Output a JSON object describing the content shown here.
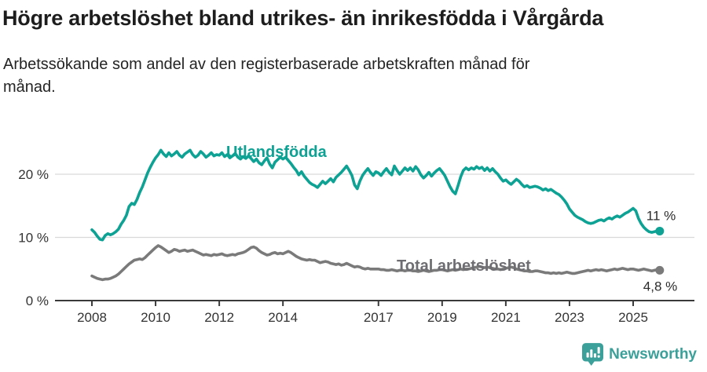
{
  "header": {
    "title": "Högre arbetslöshet bland utrikes- än inrikesfödda i Vårgårda",
    "subtitle_line1": "Arbetssökande som andel av den registerbaserade arbetskraften månad för",
    "subtitle_line2": "månad."
  },
  "footer": {
    "brand": "Newsworthy",
    "brand_color": "#3BA099",
    "logo_icon": "newsworthy-bubble-barchart-icon"
  },
  "chart_data": {
    "type": "line",
    "x_start_year": 2008,
    "x_interval": "monthly",
    "xticks": [
      2008,
      2010,
      2012,
      2014,
      2017,
      2019,
      2021,
      2023,
      2025
    ],
    "xtick_labels": [
      "2008",
      "2010",
      "2012",
      "2014",
      "2017",
      "2019",
      "2021",
      "2023",
      "2025"
    ],
    "yticks": [
      0,
      10,
      20
    ],
    "ytick_labels": [
      "0 %",
      "10 %",
      "20 %"
    ],
    "ylim": [
      0,
      27
    ],
    "grid": "horizontal-only",
    "unit": "%",
    "colors": {
      "foreign_born": "#0DA294",
      "total": "#7A7A7A",
      "grid": "#d9d9d9",
      "axis": "#3a3a3a"
    },
    "series": [
      {
        "name": "Utlandsfödda",
        "color": "#0DA294",
        "label_color": "#0DA294",
        "end_label": "11 %",
        "values": [
          11.2,
          10.8,
          10.2,
          9.7,
          9.6,
          10.3,
          10.6,
          10.4,
          10.6,
          10.9,
          11.3,
          12.1,
          12.7,
          13.5,
          14.9,
          15.4,
          15.2,
          16.0,
          17.1,
          18.0,
          19.1,
          20.2,
          21.1,
          21.9,
          22.6,
          23.1,
          23.8,
          23.2,
          22.8,
          23.4,
          22.9,
          23.2,
          23.6,
          23.0,
          22.7,
          23.2,
          23.5,
          23.8,
          23.1,
          22.7,
          23.0,
          23.6,
          23.2,
          22.7,
          23.0,
          23.4,
          22.9,
          23.1,
          23.0,
          23.4,
          22.8,
          23.1,
          22.6,
          22.9,
          23.3,
          22.7,
          22.4,
          22.8,
          22.5,
          22.9,
          22.5,
          22.0,
          22.4,
          21.8,
          21.5,
          22.1,
          22.6,
          21.6,
          21.0,
          21.9,
          22.3,
          22.7,
          22.4,
          22.7,
          22.2,
          21.7,
          21.1,
          20.6,
          19.9,
          20.4,
          19.7,
          19.2,
          18.7,
          18.4,
          18.2,
          17.9,
          18.4,
          18.9,
          18.5,
          18.9,
          19.3,
          18.8,
          19.5,
          19.9,
          20.3,
          20.8,
          21.3,
          20.6,
          19.8,
          18.3,
          17.7,
          18.9,
          19.8,
          20.4,
          20.9,
          20.3,
          19.8,
          20.4,
          20.2,
          19.8,
          20.4,
          20.9,
          20.3,
          19.9,
          21.3,
          20.6,
          20.0,
          20.5,
          21.0,
          20.6,
          21.0,
          20.5,
          21.2,
          20.7,
          19.9,
          19.4,
          19.8,
          20.3,
          19.7,
          20.2,
          20.6,
          20.9,
          20.4,
          19.8,
          18.9,
          18.0,
          17.3,
          16.9,
          18.2,
          19.6,
          20.6,
          21.0,
          20.7,
          21.0,
          20.8,
          21.2,
          20.9,
          21.1,
          20.6,
          21.0,
          20.5,
          20.9,
          20.4,
          20.0,
          19.4,
          18.9,
          19.1,
          18.7,
          18.4,
          18.8,
          19.2,
          18.9,
          18.4,
          18.0,
          18.2,
          17.9,
          18.0,
          18.1,
          18.0,
          17.8,
          17.5,
          17.7,
          17.4,
          17.6,
          17.3,
          17.0,
          16.8,
          16.4,
          15.9,
          15.3,
          14.5,
          14.0,
          13.5,
          13.2,
          13.0,
          12.8,
          12.5,
          12.3,
          12.2,
          12.3,
          12.5,
          12.7,
          12.8,
          12.6,
          12.9,
          13.1,
          12.9,
          13.2,
          13.4,
          13.2,
          13.5,
          13.8,
          14.0,
          14.3,
          14.6,
          14.2,
          13.0,
          12.2,
          11.6,
          11.2,
          10.9,
          10.8,
          10.9,
          11.0,
          11.0
        ]
      },
      {
        "name": "Total arbetslöshet",
        "color": "#7A7A7A",
        "label_color": "#6E6E72",
        "end_label": "4,8 %",
        "values": [
          3.9,
          3.7,
          3.5,
          3.4,
          3.3,
          3.4,
          3.4,
          3.5,
          3.7,
          3.9,
          4.2,
          4.6,
          5.0,
          5.4,
          5.8,
          6.1,
          6.4,
          6.5,
          6.6,
          6.5,
          6.8,
          7.2,
          7.6,
          8.0,
          8.4,
          8.7,
          8.5,
          8.2,
          7.9,
          7.6,
          7.8,
          8.1,
          8.0,
          7.8,
          7.9,
          8.0,
          7.8,
          7.9,
          8.0,
          7.8,
          7.6,
          7.4,
          7.2,
          7.3,
          7.2,
          7.1,
          7.3,
          7.2,
          7.3,
          7.4,
          7.2,
          7.1,
          7.2,
          7.3,
          7.2,
          7.4,
          7.5,
          7.6,
          7.8,
          8.1,
          8.4,
          8.5,
          8.3,
          7.9,
          7.6,
          7.4,
          7.2,
          7.3,
          7.5,
          7.6,
          7.4,
          7.5,
          7.4,
          7.6,
          7.8,
          7.6,
          7.3,
          7.0,
          6.8,
          6.6,
          6.5,
          6.4,
          6.5,
          6.4,
          6.4,
          6.2,
          6.0,
          6.1,
          6.2,
          6.1,
          5.9,
          5.8,
          5.7,
          5.8,
          5.6,
          5.7,
          5.9,
          5.7,
          5.5,
          5.3,
          5.4,
          5.3,
          5.1,
          5.0,
          5.1,
          5.0,
          5.0,
          5.0,
          5.0,
          4.9,
          4.9,
          4.8,
          4.8,
          4.9,
          4.8,
          4.7,
          4.8,
          4.8,
          4.7,
          4.8,
          4.8,
          4.7,
          4.7,
          4.6,
          4.7,
          4.8,
          4.7,
          4.6,
          4.7,
          4.8,
          4.8,
          4.9,
          4.9,
          4.8,
          4.7,
          4.8,
          4.9,
          4.8,
          4.9,
          5.0,
          4.9,
          5.0,
          5.0,
          5.1,
          5.2,
          5.3,
          5.4,
          5.3,
          5.2,
          5.3,
          5.2,
          5.1,
          5.0,
          5.0,
          4.9,
          5.0,
          5.1,
          5.2,
          5.3,
          5.2,
          5.0,
          4.9,
          4.8,
          4.7,
          4.7,
          4.6,
          4.6,
          4.7,
          4.7,
          4.6,
          4.5,
          4.4,
          4.4,
          4.3,
          4.4,
          4.3,
          4.4,
          4.3,
          4.4,
          4.5,
          4.4,
          4.3,
          4.3,
          4.4,
          4.5,
          4.6,
          4.7,
          4.8,
          4.7,
          4.8,
          4.9,
          4.8,
          4.9,
          4.8,
          4.7,
          4.8,
          4.9,
          5.0,
          4.9,
          5.0,
          5.1,
          5.0,
          4.9,
          5.0,
          5.0,
          4.9,
          4.8,
          4.9,
          5.0,
          4.9,
          4.8,
          4.7,
          4.8,
          4.9,
          4.8
        ]
      }
    ]
  }
}
